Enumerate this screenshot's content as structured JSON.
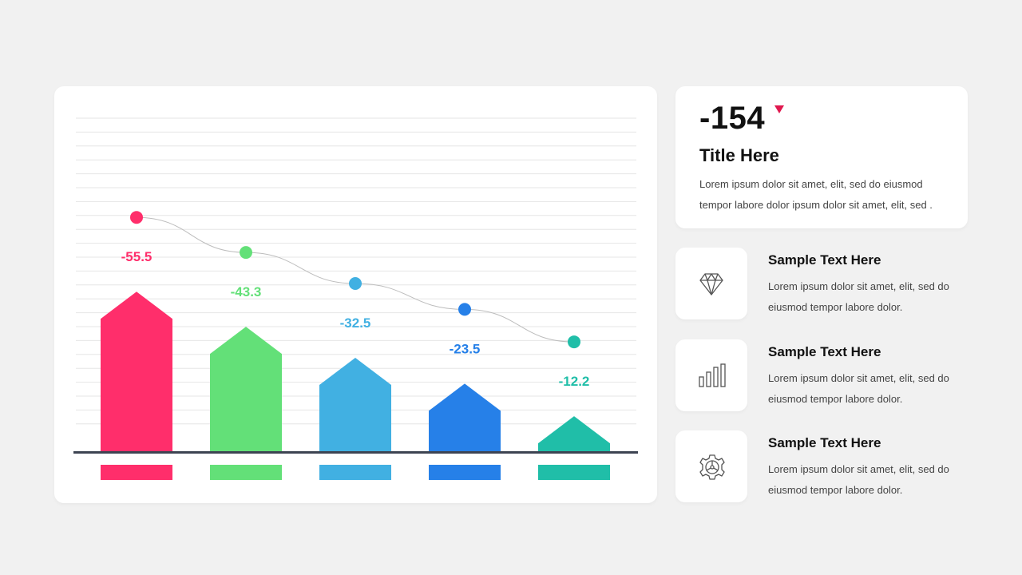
{
  "chart_data": {
    "type": "bar",
    "values": [
      -55.5,
      -43.3,
      -32.5,
      -23.5,
      -12.2
    ],
    "labels": [
      "-55.5",
      "-43.3",
      "-32.5",
      "-23.5",
      "-12.2"
    ],
    "colors": [
      "#ff2e6b",
      "#63e078",
      "#41b0e2",
      "#2680e8",
      "#20bea8"
    ],
    "ylim": [
      -70,
      0
    ],
    "grid": true,
    "trend_line": true,
    "title": "",
    "xlabel": "",
    "ylabel": ""
  },
  "summary": {
    "value": "-154",
    "trend_icon": "triangle-down-icon",
    "trend_color": "#e0184e",
    "title": "Title Here",
    "body": "Lorem ipsum dolor sit amet, elit, sed do eiusmod tempor labore dolor ipsum dolor sit amet, elit, sed ."
  },
  "items": [
    {
      "icon": "diamond-icon",
      "title": "Sample Text Here",
      "body": "Lorem ipsum dolor sit amet, elit, sed do eiusmod tempor labore dolor."
    },
    {
      "icon": "bar-chart-icon",
      "title": "Sample Text Here",
      "body": "Lorem ipsum dolor sit amet, elit, sed do eiusmod tempor labore dolor."
    },
    {
      "icon": "gear-icon",
      "title": "Sample Text Here",
      "body": "Lorem ipsum dolor sit amet, elit, sed do eiusmod tempor labore dolor."
    }
  ]
}
